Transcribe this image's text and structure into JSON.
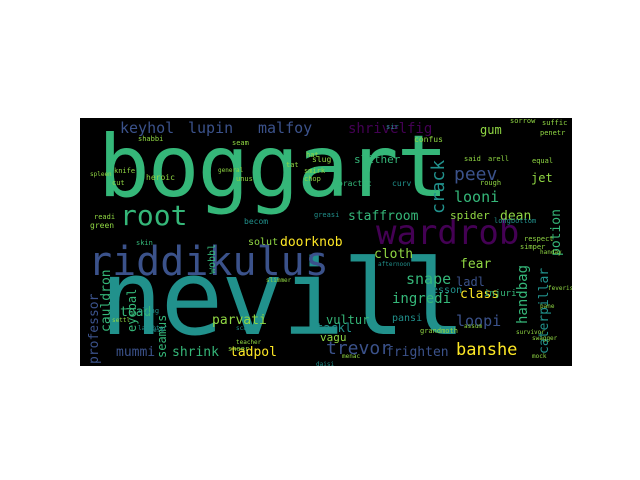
{
  "palette": {
    "background": "#000000",
    "page": "#ffffff",
    "purple": "#440154",
    "indigo": "#3b528b",
    "teal": "#21918c",
    "green": "#35b779",
    "lime": "#90d743",
    "yellow": "#fde725"
  },
  "words": {
    "nevill": "nevill",
    "boggart": "boggart",
    "riddikulus": "riddikulus",
    "wardrob": "wardrob",
    "root": "root",
    "keyhol": "keyhol",
    "lupin": "lupin",
    "malfoy": "malfoy",
    "shrivelfig": "shrivelfig",
    "crack": "crack",
    "peev": "peev",
    "looni": "looni",
    "spider": "spider",
    "jet": "jet",
    "gum": "gum",
    "class": "class",
    "snape": "snape",
    "doorknob": "doorknob",
    "cloth": "cloth",
    "fear": "fear",
    "ladl": "ladl",
    "handbag": "handbag",
    "potion": "potion",
    "lesson": "lesson",
    "ingredi": "ingredi",
    "loopi": "loopi",
    "caterpillar": "caterpillar",
    "banshe": "banshe",
    "frighten": "frighten",
    "trevor": "trevor",
    "tadpol": "tadpol",
    "shrink": "shrink",
    "mummi": "mummi",
    "professor": "professor",
    "seamus": "seamus",
    "eyebal": "eyebal",
    "cauldron": "cauldron",
    "toad": "toad",
    "parvati": "parvati",
    "vultur": "vultur",
    "tackl": "tackl",
    "vagu": "vagu",
    "pansi": "pansi",
    "injuri": "injuri",
    "staffroom": "staffroom",
    "dean": "dean",
    "slither": "slither",
    "solut": "solut",
    "wobbl": "wobbl",
    "becom": "becom",
    "practic": "practic",
    "curv": "curv",
    "slug": "slug",
    "heroic": "heroic",
    "shabbi": "shabbi",
    "seam": "seam",
    "confus": "confus",
    "said": "said",
    "arell": "arell",
    "equal": "equal",
    "rough": "rough",
    "longbottom": "longbottom",
    "respect": "respect",
    "green": "green",
    "readi": "readi",
    "skin": "skin",
    "sling": "sling",
    "teacher": "teacher",
    "grandmoth": "grandmoth",
    "mock": "mock",
    "afternoon": "afternoon",
    "simper": "simper",
    "survivor": "survivor",
    "sorrow": "sorrow",
    "suffic": "suffic",
    "penetr": "penetr",
    "knife": "knife",
    "cut": "cut",
    "sneer": "sneer",
    "daisi": "daisi",
    "menac": "menac",
    "laughter": "laughter",
    "greasi": "greasi",
    "smirk": "smirk",
    "chop": "chop",
    "general": "general",
    "unus": "unus",
    "tat": "tat",
    "sir": "sir",
    "hat": "hat",
    "assum": "assum",
    "spleen": "spleen",
    "scale": "scale",
    "slimmer": "slimmer",
    "feverish": "feverish",
    "handay": "handay",
    "pane": "pane",
    "swagger": "swagger",
    "dress": "dress",
    "settl": "settl"
  }
}
